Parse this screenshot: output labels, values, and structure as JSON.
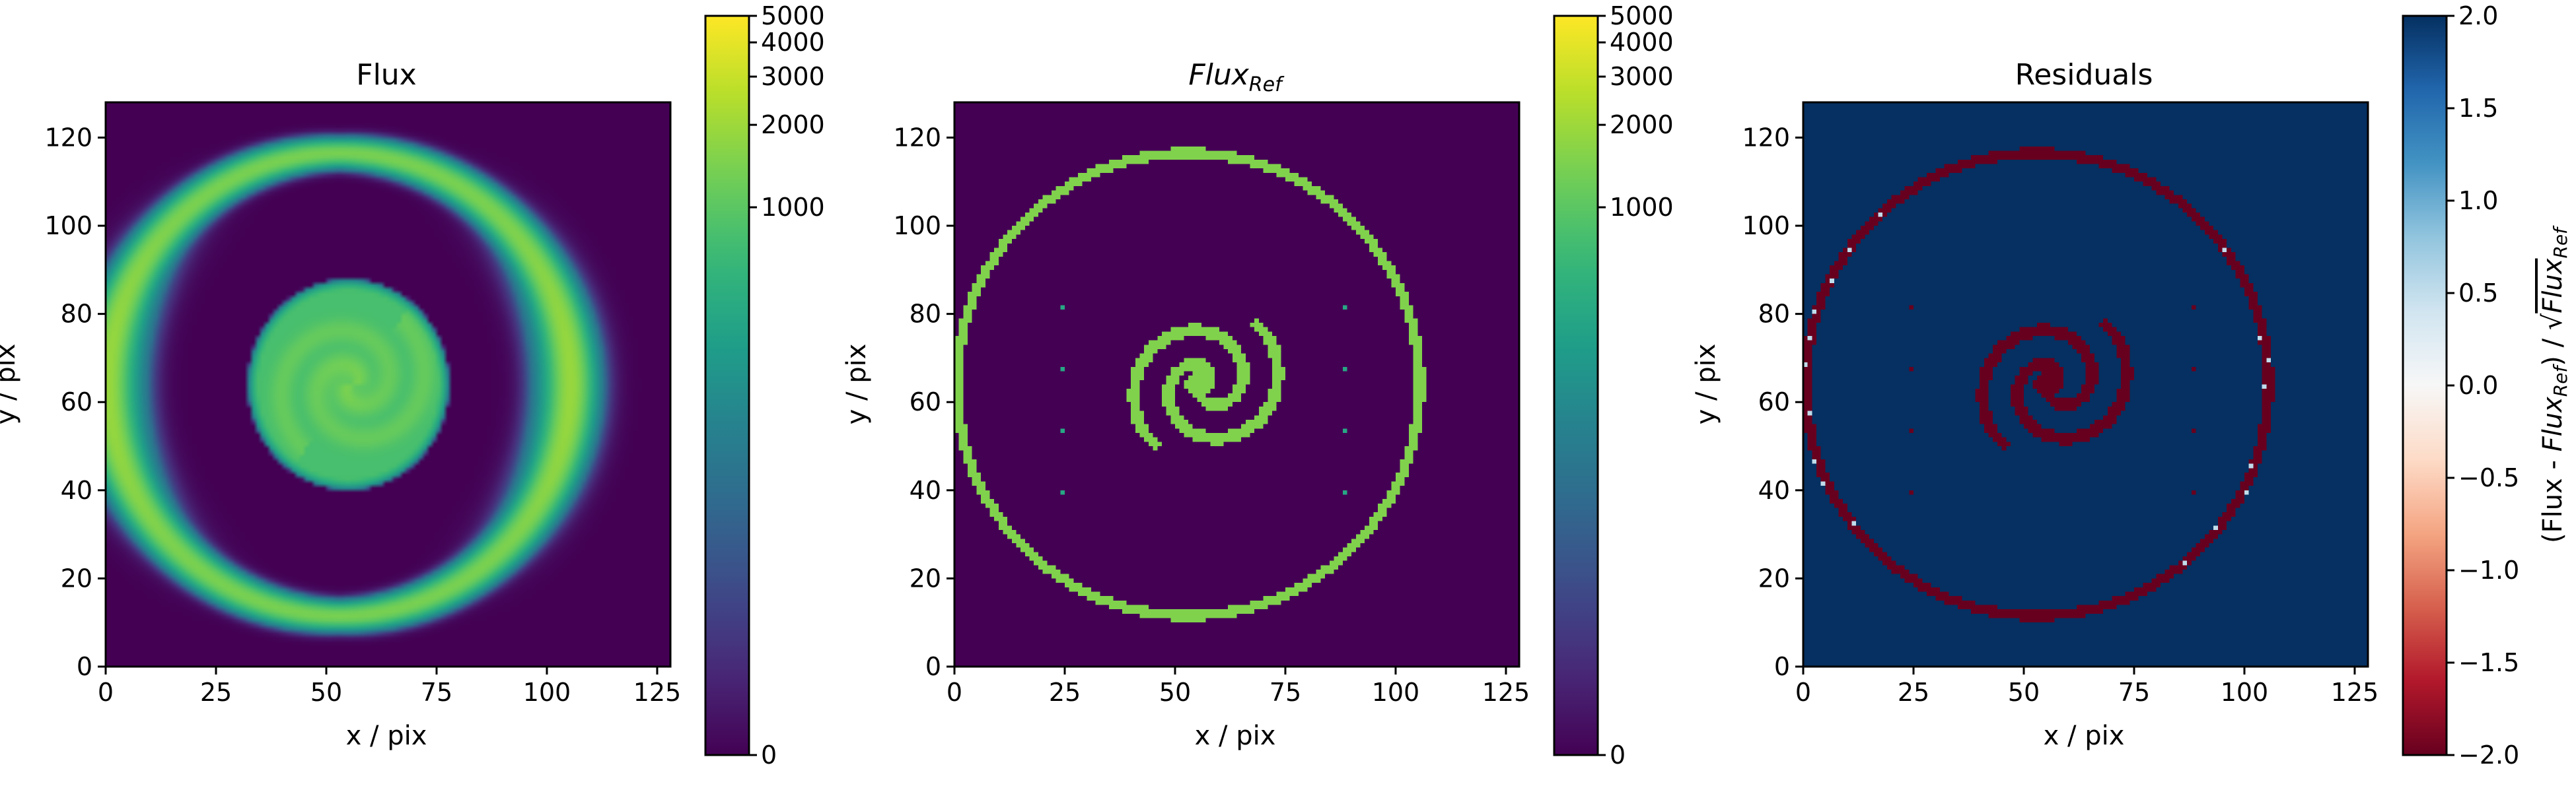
{
  "chart_data": [
    {
      "type": "heatmap",
      "title": "Flux",
      "xlabel": "x / pix",
      "ylabel": "y / pix",
      "xlim": [
        0,
        128
      ],
      "ylim": [
        0,
        128
      ],
      "x_ticks": [
        0,
        25,
        50,
        75,
        100,
        125
      ],
      "y_ticks": [
        0,
        20,
        40,
        60,
        80,
        100,
        120
      ],
      "colormap": "viridis",
      "colorbar": {
        "scale": "symlog",
        "range": [
          0,
          5000
        ],
        "ticks": [
          0,
          1000,
          2000,
          3000,
          4000,
          5000
        ],
        "tick_labels": [
          "0",
          "1000",
          "2000",
          "3000",
          "4000",
          "5000"
        ]
      },
      "features": {
        "background": 0,
        "ring_center": [
          53,
          64
        ],
        "ring_radius": 52.5,
        "ring_value": 1400,
        "core_value": 1100,
        "blurred": true
      }
    },
    {
      "type": "heatmap",
      "title": "Flux",
      "title_sub": "Ref",
      "xlabel": "x / pix",
      "ylabel": "y / pix",
      "xlim": [
        0,
        128
      ],
      "ylim": [
        0,
        128
      ],
      "x_ticks": [
        0,
        25,
        50,
        75,
        100,
        125
      ],
      "y_ticks": [
        0,
        20,
        40,
        60,
        80,
        100,
        120
      ],
      "colormap": "viridis",
      "colorbar": {
        "scale": "symlog",
        "range": [
          0,
          5000
        ],
        "ticks": [
          0,
          1000,
          2000,
          3000,
          4000,
          5000
        ],
        "tick_labels": [
          "0",
          "1000",
          "2000",
          "3000",
          "4000",
          "5000"
        ]
      },
      "features": {
        "background": 0,
        "ring_center": [
          53,
          64
        ],
        "ring_radius": 52.5,
        "value": 1500,
        "spiral_center": [
          57,
          64
        ],
        "point_sources": [
          [
            24,
            81
          ],
          [
            24,
            67
          ],
          [
            24,
            53
          ],
          [
            24,
            39
          ],
          [
            88,
            81
          ],
          [
            88,
            67
          ],
          [
            88,
            53
          ],
          [
            88,
            39
          ]
        ]
      }
    },
    {
      "type": "heatmap",
      "title": "Residuals",
      "xlabel": "x / pix",
      "ylabel": "y / pix",
      "xlim": [
        0,
        128
      ],
      "ylim": [
        0,
        128
      ],
      "x_ticks": [
        0,
        25,
        50,
        75,
        100,
        125
      ],
      "y_ticks": [
        0,
        20,
        40,
        60,
        80,
        100,
        120
      ],
      "colormap": "RdBu",
      "colorbar": {
        "scale": "linear",
        "range": [
          -2.0,
          2.0
        ],
        "ticks": [
          -2.0,
          -1.5,
          -1.0,
          -0.5,
          0.0,
          0.5,
          1.0,
          1.5,
          2.0
        ],
        "tick_labels": [
          "−2.0",
          "−1.5",
          "−1.0",
          "−0.5",
          "0.0",
          "0.5",
          "1.0",
          "1.5",
          "2.0"
        ],
        "label": "(Flux - Flux_Ref) / √Flux_Ref",
        "label_parts": [
          "(Flux - ",
          "Flux",
          "Ref",
          ") / ",
          "√",
          "Flux",
          "Ref"
        ]
      },
      "features": {
        "background": 2.0,
        "ring_value": -2.0,
        "spiral_value": -2.0
      }
    }
  ]
}
